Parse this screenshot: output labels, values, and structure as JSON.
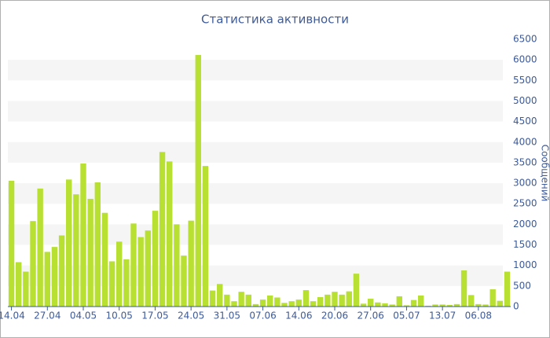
{
  "chart_data": {
    "type": "bar",
    "title": "Статистика активности",
    "y_label": "Сообщений",
    "categories": [
      "14.04",
      null,
      null,
      null,
      null,
      "27.04",
      null,
      null,
      null,
      null,
      "04.05",
      null,
      null,
      null,
      null,
      "10.05",
      null,
      null,
      null,
      null,
      "17.05",
      null,
      null,
      null,
      null,
      "24.05",
      null,
      null,
      null,
      null,
      "31.05",
      null,
      null,
      null,
      null,
      "07.06",
      null,
      null,
      null,
      null,
      "14.06",
      null,
      null,
      null,
      null,
      "20.06",
      null,
      null,
      null,
      null,
      "27.06",
      null,
      null,
      null,
      null,
      "05.07",
      null,
      null,
      null,
      null,
      "13.07",
      null,
      null,
      null,
      null,
      "06.08",
      null,
      null,
      null,
      null
    ],
    "values": [
      3060,
      1080,
      850,
      2080,
      2870,
      1330,
      1450,
      1730,
      3090,
      2730,
      3480,
      2620,
      3020,
      2280,
      1100,
      1580,
      1150,
      2020,
      1690,
      1850,
      2330,
      3760,
      3530,
      2000,
      1240,
      2090,
      6120,
      3420,
      390,
      550,
      290,
      130,
      360,
      290,
      60,
      170,
      270,
      220,
      90,
      130,
      170,
      400,
      130,
      230,
      290,
      360,
      290,
      370,
      800,
      70,
      190,
      100,
      80,
      50,
      250,
      30,
      160,
      270,
      20,
      50,
      50,
      40,
      60,
      880,
      280,
      60,
      50,
      420,
      140,
      850
    ],
    "color": "#b8e032",
    "ylim": [
      0,
      6500
    ],
    "yticks": [
      0,
      500,
      1000,
      1500,
      2000,
      2500,
      3000,
      3500,
      4000,
      4500,
      5000,
      5500,
      6000,
      6500
    ],
    "grid": true
  }
}
